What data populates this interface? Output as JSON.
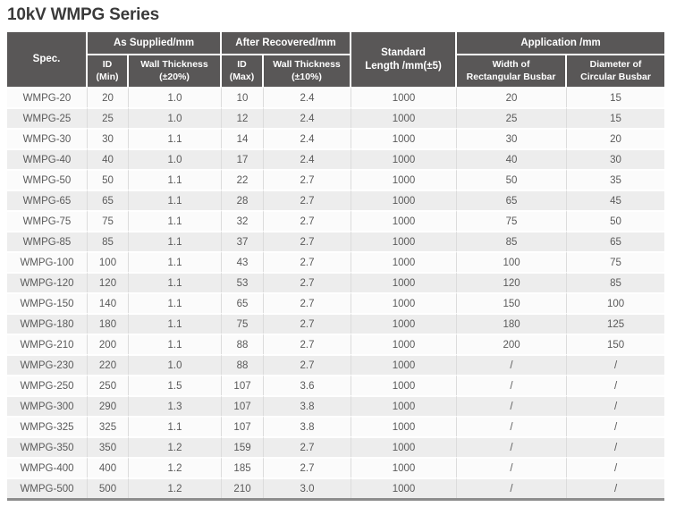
{
  "page": {
    "title": "10kV WMPG Series"
  },
  "colors": {
    "header_bg": "#595757",
    "header_text": "#ffffff",
    "row_odd_bg": "#fbfbfb",
    "row_even_bg": "#ededed",
    "body_text": "#5a5a5a",
    "grid_line": "#dcdcdc",
    "bottom_border": "#8d8d8d",
    "title_text": "#3a3a3a"
  },
  "table": {
    "headers": {
      "spec": "Spec.",
      "as_supplied": "As Supplied/mm",
      "after_recovered": "After Recovered/mm",
      "standard_length": "Standard\nLength /mm(±5)",
      "application": "Application /mm",
      "id_min": "ID\n(Min)",
      "wall_thickness_20": "Wall Thickness\n(±20%)",
      "id_max": "ID\n(Max)",
      "wall_thickness_10": "Wall Thickness\n(±10%)",
      "width_rect": "Width of\nRectangular Busbar",
      "dia_circ": "Diameter of\nCircular Busbar"
    },
    "column_keys": [
      "spec",
      "id-min",
      "wall-thickness-20",
      "id-max",
      "wall-thickness-10",
      "standard-length",
      "width-rectangular-busbar",
      "diameter-circular-busbar"
    ],
    "rows": [
      [
        "WMPG-20",
        "20",
        "1.0",
        "10",
        "2.4",
        "1000",
        "20",
        "15"
      ],
      [
        "WMPG-25",
        "25",
        "1.0",
        "12",
        "2.4",
        "1000",
        "25",
        "15"
      ],
      [
        "WMPG-30",
        "30",
        "1.1",
        "14",
        "2.4",
        "1000",
        "30",
        "20"
      ],
      [
        "WMPG-40",
        "40",
        "1.0",
        "17",
        "2.4",
        "1000",
        "40",
        "30"
      ],
      [
        "WMPG-50",
        "50",
        "1.1",
        "22",
        "2.7",
        "1000",
        "50",
        "35"
      ],
      [
        "WMPG-65",
        "65",
        "1.1",
        "28",
        "2.7",
        "1000",
        "65",
        "45"
      ],
      [
        "WMPG-75",
        "75",
        "1.1",
        "32",
        "2.7",
        "1000",
        "75",
        "50"
      ],
      [
        "WMPG-85",
        "85",
        "1.1",
        "37",
        "2.7",
        "1000",
        "85",
        "65"
      ],
      [
        "WMPG-100",
        "100",
        "1.1",
        "43",
        "2.7",
        "1000",
        "100",
        "75"
      ],
      [
        "WMPG-120",
        "120",
        "1.1",
        "53",
        "2.7",
        "1000",
        "120",
        "85"
      ],
      [
        "WMPG-150",
        "140",
        "1.1",
        "65",
        "2.7",
        "1000",
        "150",
        "100"
      ],
      [
        "WMPG-180",
        "180",
        "1.1",
        "75",
        "2.7",
        "1000",
        "180",
        "125"
      ],
      [
        "WMPG-210",
        "200",
        "1.1",
        "88",
        "2.7",
        "1000",
        "200",
        "150"
      ],
      [
        "WMPG-230",
        "220",
        "1.0",
        "88",
        "2.7",
        "1000",
        "/",
        "/"
      ],
      [
        "WMPG-250",
        "250",
        "1.5",
        "107",
        "3.6",
        "1000",
        "/",
        "/"
      ],
      [
        "WMPG-300",
        "290",
        "1.3",
        "107",
        "3.8",
        "1000",
        "/",
        "/"
      ],
      [
        "WMPG-325",
        "325",
        "1.1",
        "107",
        "3.8",
        "1000",
        "/",
        "/"
      ],
      [
        "WMPG-350",
        "350",
        "1.2",
        "159",
        "2.7",
        "1000",
        "/",
        "/"
      ],
      [
        "WMPG-400",
        "400",
        "1.2",
        "185",
        "2.7",
        "1000",
        "/",
        "/"
      ],
      [
        "WMPG-500",
        "500",
        "1.2",
        "210",
        "3.0",
        "1000",
        "/",
        "/"
      ]
    ]
  }
}
